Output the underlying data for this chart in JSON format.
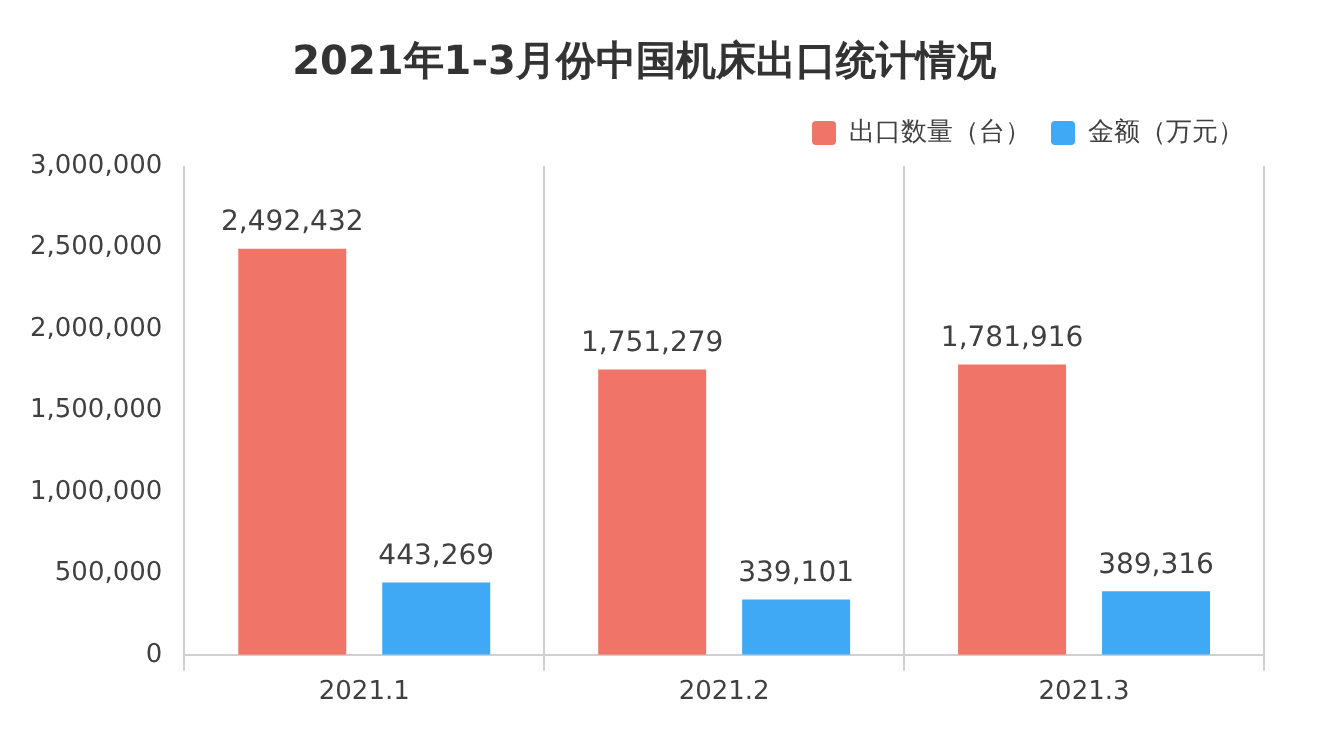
{
  "chart_data": {
    "type": "bar",
    "title": "2021年1-3月份中国机床出口统计情况",
    "categories": [
      "2021.1",
      "2021.2",
      "2021.3"
    ],
    "series": [
      {
        "name": "出口数量（台）",
        "color": "#f07467",
        "values": [
          2492432,
          1751279,
          1781916
        ],
        "value_labels": [
          "2,492,432",
          "1,751,279",
          "1,781,916"
        ]
      },
      {
        "name": "金额（万元）",
        "color": "#3fa9f5",
        "values": [
          443269,
          339101,
          389316
        ],
        "value_labels": [
          "443,269",
          "339,101",
          "389,316"
        ]
      }
    ],
    "ylim": [
      0,
      3000000
    ],
    "yticks": [
      {
        "value": 0,
        "label": "0"
      },
      {
        "value": 500000,
        "label": "500,000"
      },
      {
        "value": 1000000,
        "label": "1,000,000"
      },
      {
        "value": 1500000,
        "label": "1,500,000"
      },
      {
        "value": 2000000,
        "label": "2,000,000"
      },
      {
        "value": 2500000,
        "label": "2,500,000"
      },
      {
        "value": 3000000,
        "label": "3,000,000"
      }
    ],
    "grid": "x",
    "legend": "top right"
  }
}
